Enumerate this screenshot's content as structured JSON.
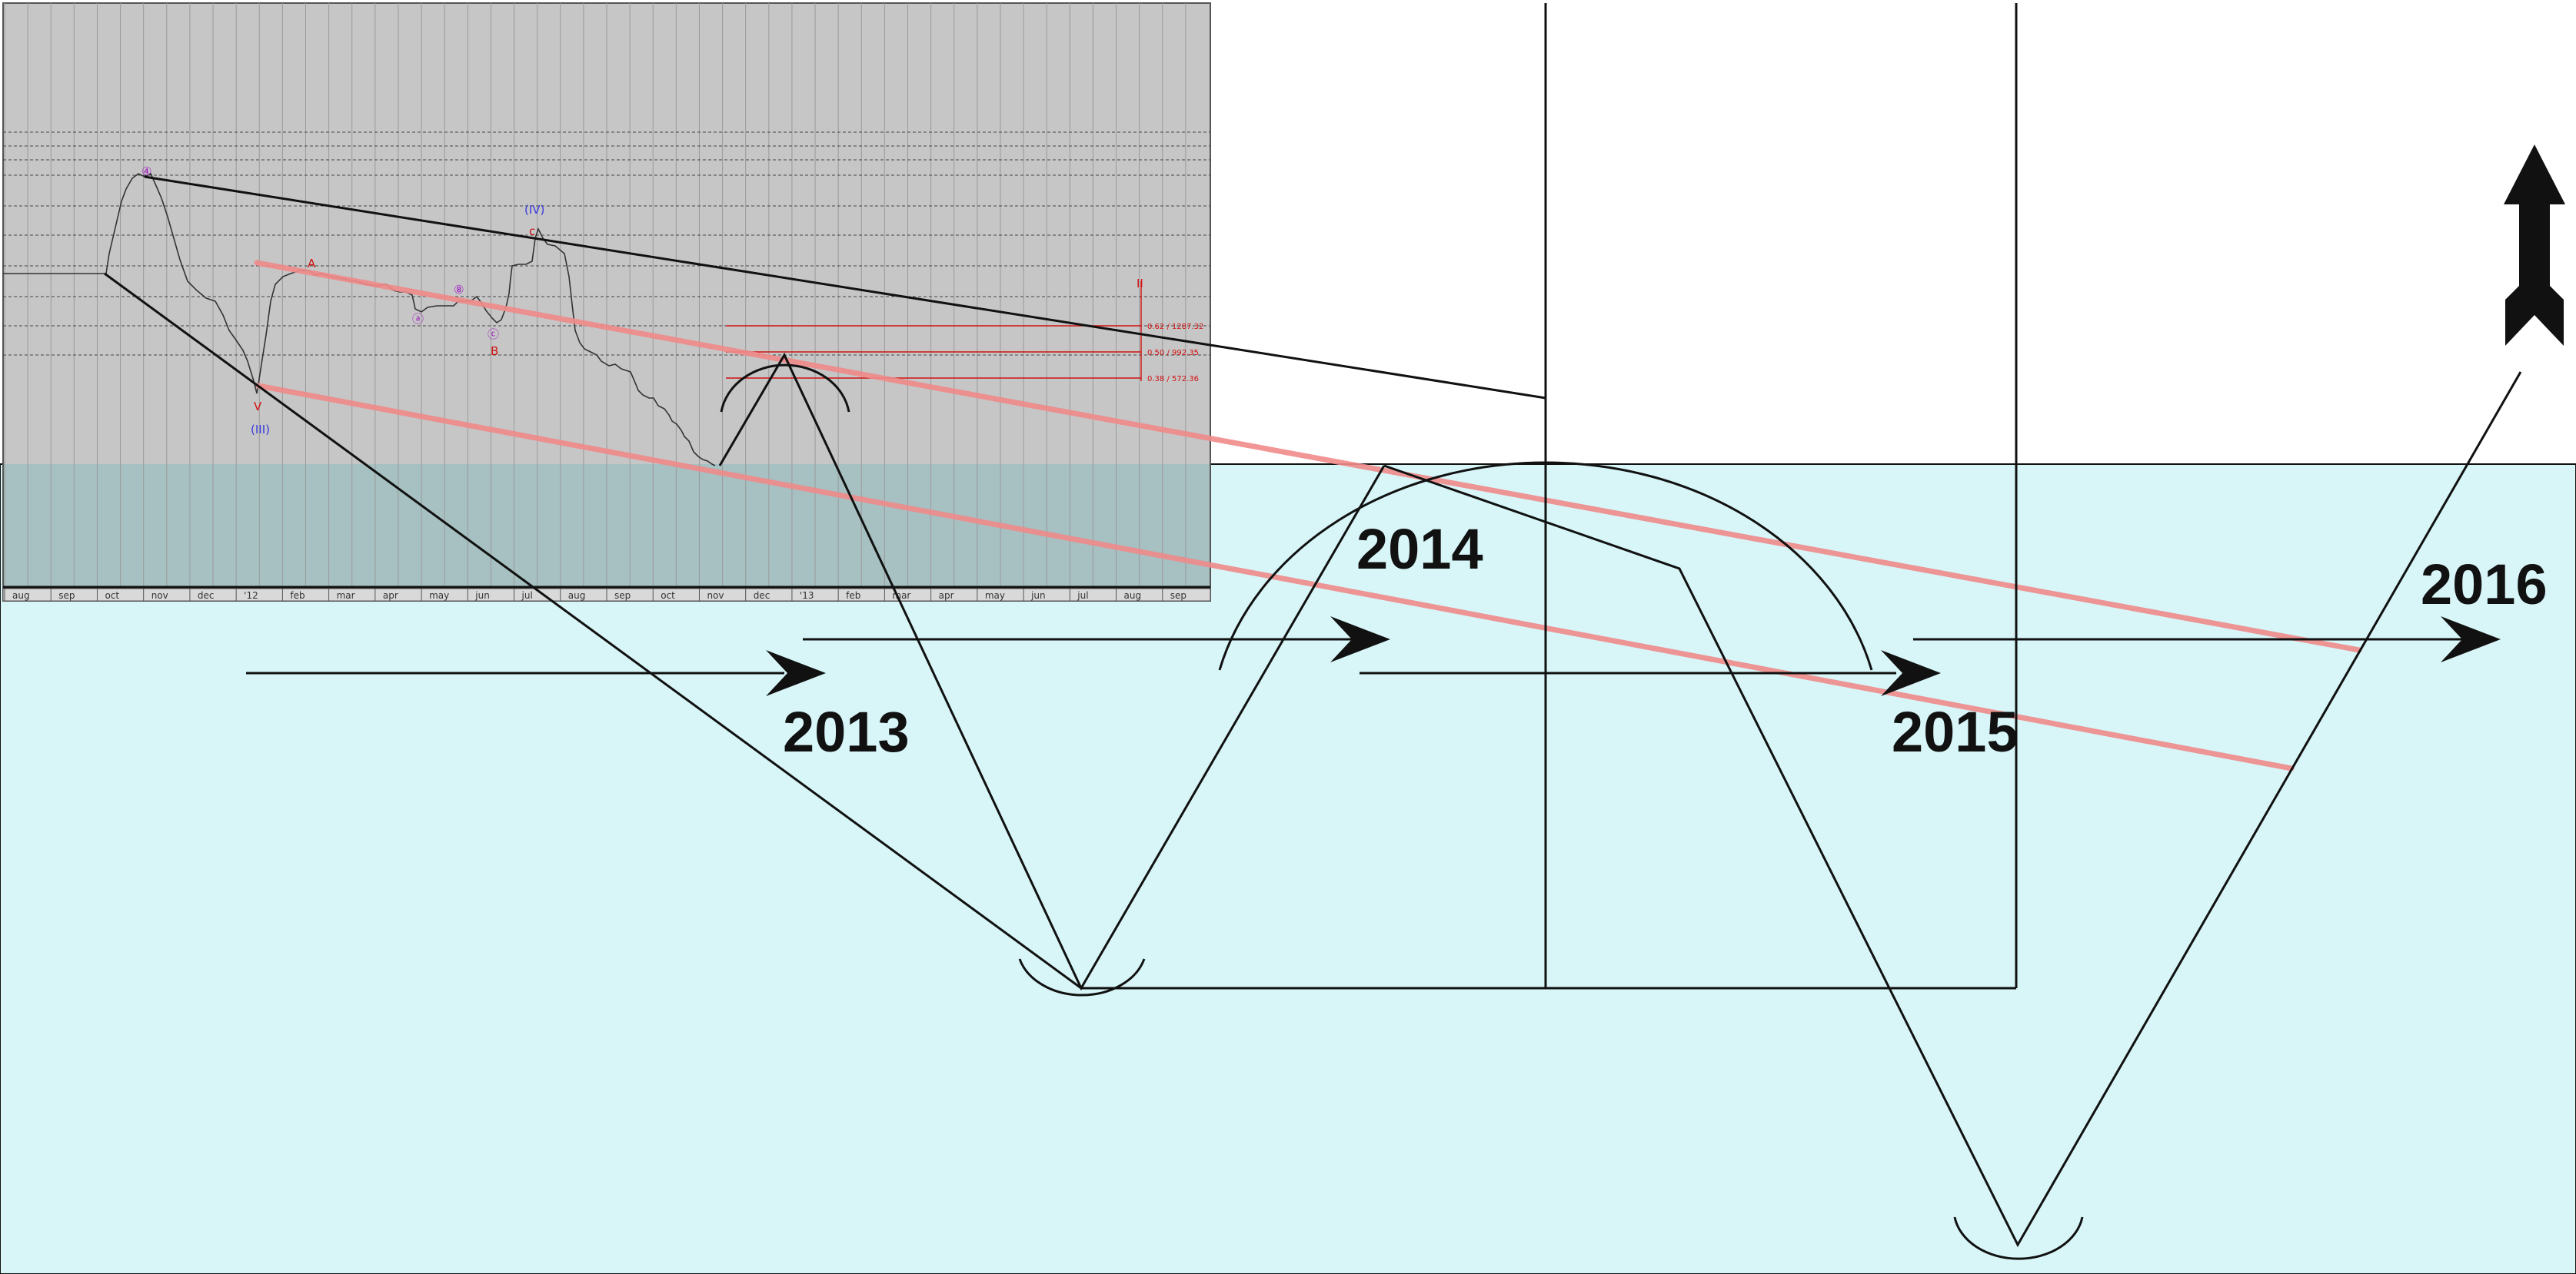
{
  "colors": {
    "page_background": "#ffffff",
    "lower_band": "#d8f6f8",
    "chart_panel": "#c6c6c6",
    "panel_overlap": "#a7c0c2",
    "drawing_lines": "#111111",
    "trend_channel": "#f08a8a",
    "fib_lines": "#d01010",
    "wave_labels_blue": "#3a3adf",
    "wave_labels_red": "#d01010",
    "wave_labels_purple": "#a020c0"
  },
  "icons": {
    "arrow": "right-arrow-icon",
    "up_arrow": "up-arrow-icon"
  },
  "chart_data": {
    "type": "line",
    "title": "",
    "xlabel": "",
    "ylabel": "",
    "x_axis_ticks": [
      "aug",
      "sep",
      "oct",
      "nov",
      "dec",
      "'12",
      "feb",
      "mar",
      "apr",
      "may",
      "jun",
      "jul",
      "aug",
      "sep",
      "oct",
      "nov",
      "dec",
      "'13",
      "feb",
      "mar",
      "apr",
      "may",
      "jun",
      "jul",
      "aug",
      "sep"
    ],
    "grid": true,
    "wave_labels": [
      {
        "text": "④",
        "color": "purple"
      },
      {
        "text": "(IV)",
        "color": "blue"
      },
      {
        "text": "c",
        "color": "red"
      },
      {
        "text": "A",
        "color": "red"
      },
      {
        "text": "⑧",
        "color": "purple"
      },
      {
        "text": "ⓐ",
        "color": "purple"
      },
      {
        "text": "ⓒ",
        "color": "purple"
      },
      {
        "text": "B",
        "color": "red"
      },
      {
        "text": "V",
        "color": "red"
      },
      {
        "text": "(III)",
        "color": "blue"
      },
      {
        "text": "II",
        "color": "red"
      }
    ],
    "fibonacci_levels": [
      "0.62 / 1287.32",
      "0.50 / 992.35",
      "0.38 / 572.36"
    ],
    "year_labels": [
      "2013",
      "2014",
      "2015",
      "2016"
    ]
  }
}
